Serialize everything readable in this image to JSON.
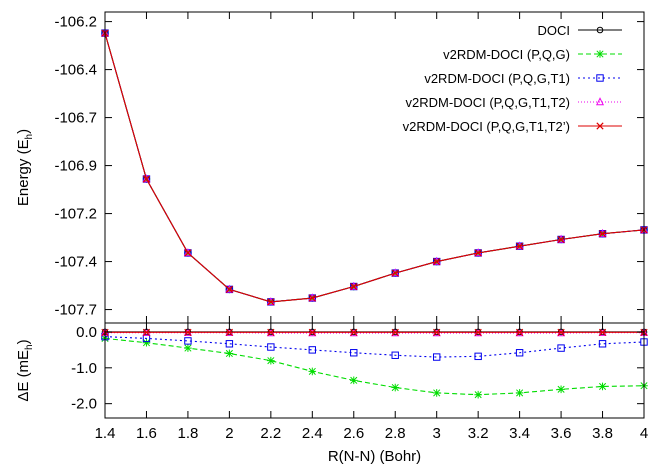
{
  "chart_data": [
    {
      "type": "line",
      "xlabel": "R(N-N) (Bohr)",
      "ylabel": "Energy (E",
      "ylabel_sub": "h",
      "ylabel_end": ")",
      "x": [
        1.4,
        1.6,
        1.8,
        2.0,
        2.2,
        2.4,
        2.6,
        2.8,
        3.0,
        3.2,
        3.4,
        3.6,
        3.8,
        4.0
      ],
      "xlim": [
        1.4,
        4.0
      ],
      "xticks": [
        1.4,
        1.6,
        1.8,
        2.0,
        2.2,
        2.4,
        2.6,
        2.8,
        3.0,
        3.2,
        3.4,
        3.6,
        3.8,
        4.0
      ],
      "xtick_labels": [
        "1.4",
        "1.6",
        "1.8",
        "2",
        "2.2",
        "2.4",
        "2.6",
        "2.8",
        "3",
        "3.2",
        "3.4",
        "3.6",
        "3.8",
        "4"
      ],
      "ylim": [
        -107.77,
        -106.15
      ],
      "yticks": [
        -106.2,
        -106.45,
        -106.7,
        -106.95,
        -107.2,
        -107.45,
        -107.7
      ],
      "ytick_labels": [
        "-106.2",
        "-106.4",
        "-106.7",
        "-106.9",
        "-107.2",
        "-107.4",
        "-107.7"
      ],
      "grid": false,
      "legend_position": "top-right",
      "series": [
        {
          "name": "DOCI",
          "color": "#000000",
          "marker": "circle",
          "dash": "solid",
          "values": [
            -106.26,
            -107.02,
            -107.405,
            -107.595,
            -107.66,
            -107.64,
            -107.58,
            -107.51,
            -107.45,
            -107.405,
            -107.37,
            -107.335,
            -107.305,
            -107.285
          ]
        },
        {
          "name": "v2RDM-DOCI (P,Q,G)",
          "color": "#00dd00",
          "marker": "star",
          "dash": "dashed",
          "values": [
            -106.26,
            -107.02,
            -107.405,
            -107.595,
            -107.66,
            -107.64,
            -107.58,
            -107.51,
            -107.45,
            -107.405,
            -107.37,
            -107.335,
            -107.305,
            -107.285
          ]
        },
        {
          "name": "v2RDM-DOCI (P,Q,G,T1)",
          "color": "#0000ee",
          "marker": "square",
          "dash": "dotted",
          "values": [
            -106.26,
            -107.02,
            -107.405,
            -107.595,
            -107.66,
            -107.64,
            -107.58,
            -107.51,
            -107.45,
            -107.405,
            -107.37,
            -107.335,
            -107.305,
            -107.285
          ]
        },
        {
          "name": "v2RDM-DOCI (P,Q,G,T1,T2)",
          "color": "#ee00ee",
          "marker": "triangle",
          "dash": "finedot",
          "values": [
            -106.26,
            -107.02,
            -107.405,
            -107.595,
            -107.66,
            -107.64,
            -107.58,
            -107.51,
            -107.45,
            -107.405,
            -107.37,
            -107.335,
            -107.305,
            -107.285
          ]
        },
        {
          "name": "v2RDM-DOCI (P,Q,G,T1,T2’)",
          "color": "#dd0000",
          "marker": "x",
          "dash": "solid",
          "values": [
            -106.26,
            -107.02,
            -107.405,
            -107.595,
            -107.66,
            -107.64,
            -107.58,
            -107.51,
            -107.45,
            -107.405,
            -107.37,
            -107.335,
            -107.305,
            -107.285
          ]
        }
      ]
    },
    {
      "type": "line",
      "xlabel": "R(N-N) (Bohr)",
      "ylabel": "ΔE (mE",
      "ylabel_sub": "h",
      "ylabel_end": ")",
      "x": [
        1.4,
        1.6,
        1.8,
        2.0,
        2.2,
        2.4,
        2.6,
        2.8,
        3.0,
        3.2,
        3.4,
        3.6,
        3.8,
        4.0
      ],
      "xlim": [
        1.4,
        4.0
      ],
      "ylim": [
        -2.4,
        0.25
      ],
      "yticks": [
        0.0,
        -1.0,
        -2.0
      ],
      "ytick_labels": [
        "0.0",
        "-1.0",
        "-2.0"
      ],
      "grid": false,
      "series": [
        {
          "name": "DOCI",
          "color": "#000000",
          "marker": "circle",
          "dash": "solid",
          "values": [
            0,
            0,
            0,
            0,
            0,
            0,
            0,
            0,
            0,
            0,
            0,
            0,
            0,
            0
          ]
        },
        {
          "name": "v2RDM-DOCI (P,Q,G)",
          "color": "#00dd00",
          "marker": "star",
          "dash": "dashed",
          "values": [
            -0.18,
            -0.3,
            -0.45,
            -0.6,
            -0.8,
            -1.1,
            -1.35,
            -1.55,
            -1.7,
            -1.75,
            -1.7,
            -1.6,
            -1.52,
            -1.5
          ]
        },
        {
          "name": "v2RDM-DOCI (P,Q,G,T1)",
          "color": "#0000ee",
          "marker": "square",
          "dash": "dotted",
          "values": [
            -0.13,
            -0.18,
            -0.25,
            -0.33,
            -0.42,
            -0.5,
            -0.58,
            -0.65,
            -0.7,
            -0.68,
            -0.58,
            -0.45,
            -0.33,
            -0.28
          ]
        },
        {
          "name": "v2RDM-DOCI (P,Q,G,T1,T2)",
          "color": "#ee00ee",
          "marker": "triangle",
          "dash": "finedot",
          "values": [
            -0.02,
            -0.02,
            -0.02,
            -0.02,
            -0.03,
            -0.03,
            -0.03,
            -0.03,
            -0.03,
            -0.03,
            -0.03,
            -0.03,
            -0.02,
            -0.02
          ]
        },
        {
          "name": "v2RDM-DOCI (P,Q,G,T1,T2’)",
          "color": "#dd0000",
          "marker": "x",
          "dash": "solid",
          "values": [
            -0.01,
            -0.01,
            -0.01,
            -0.01,
            -0.01,
            -0.01,
            -0.01,
            -0.01,
            -0.01,
            -0.01,
            -0.01,
            -0.01,
            -0.01,
            -0.01
          ]
        }
      ]
    }
  ]
}
